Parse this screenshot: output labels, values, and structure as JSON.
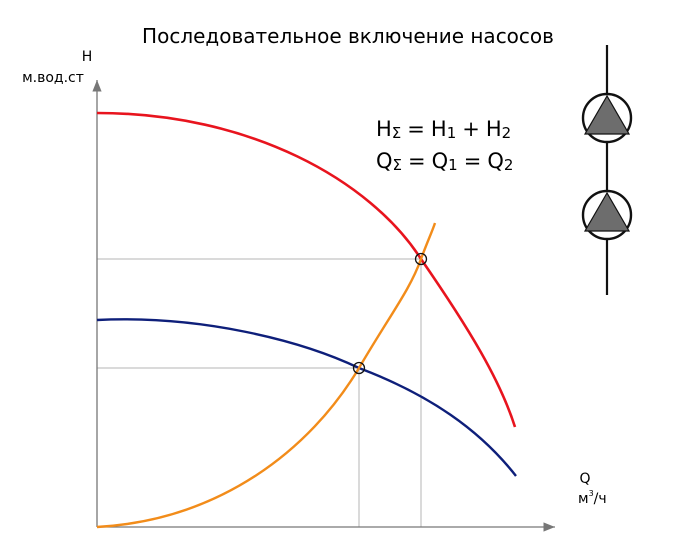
{
  "title": "Последовательное включение насосов",
  "axes": {
    "y_letter": "H",
    "y_unit": "м.вод.ст",
    "x_letter": "Q",
    "x_unit_base": "м",
    "x_unit_sup": "3",
    "x_unit_rest": "/ч"
  },
  "formulas": {
    "head": {
      "lhs": "H",
      "lhs_sub": "Σ",
      "eq": "=",
      "t1": "H",
      "t1_sub": "1",
      "op": "+",
      "t2": "H",
      "t2_sub": "2"
    },
    "flow": {
      "lhs": "Q",
      "lhs_sub": "Σ",
      "eq": "=",
      "t1": "Q",
      "t1_sub": "1",
      "op": "=",
      "t2": "Q",
      "t2_sub": "2"
    }
  },
  "colors": {
    "combined_curve": "#e8141e",
    "single_pump_curve": "#0e1f7a",
    "system_curve": "#f28c1a",
    "pump_fill": "#6d6d6d",
    "guide_lines": "#b4b4b4"
  },
  "symbol": {
    "icon": "two pumps in series",
    "count": 2
  }
}
